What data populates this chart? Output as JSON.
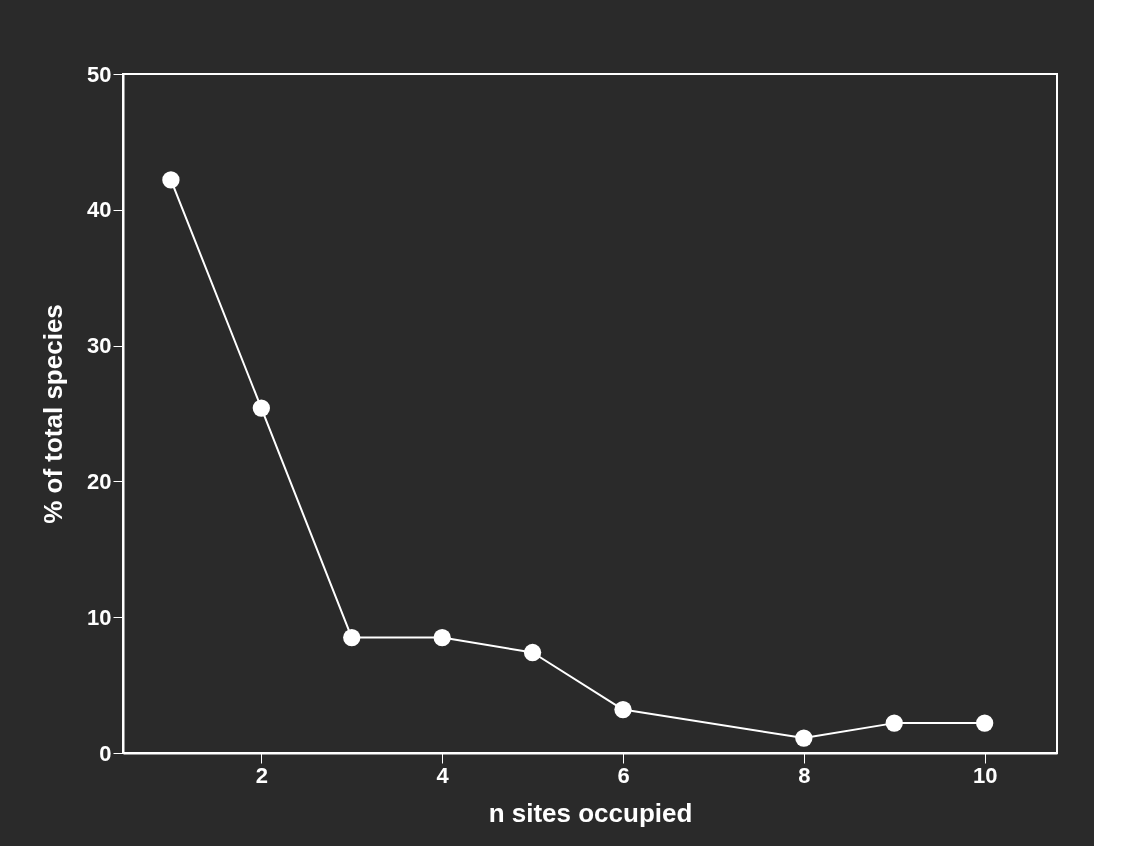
{
  "chart_data": {
    "type": "line",
    "xlabel": "n sites occupied",
    "ylabel": "% of total species",
    "x": [
      1,
      2,
      3,
      4,
      5,
      6,
      8,
      9,
      10
    ],
    "series": [
      {
        "color": "#ffffff",
        "values": [
          42.2,
          25.4,
          8.5,
          8.5,
          7.4,
          3.2,
          1.1,
          2.2,
          2.2
        ]
      }
    ],
    "xlim": [
      0.47,
      10.8
    ],
    "xticks": [
      2,
      4,
      6,
      8,
      10
    ],
    "ylim": [
      0,
      50
    ],
    "yticks": [
      0,
      10,
      20,
      30,
      40,
      50
    ],
    "grid": false,
    "legend": false,
    "marker": "circle",
    "line_style": "solid"
  }
}
